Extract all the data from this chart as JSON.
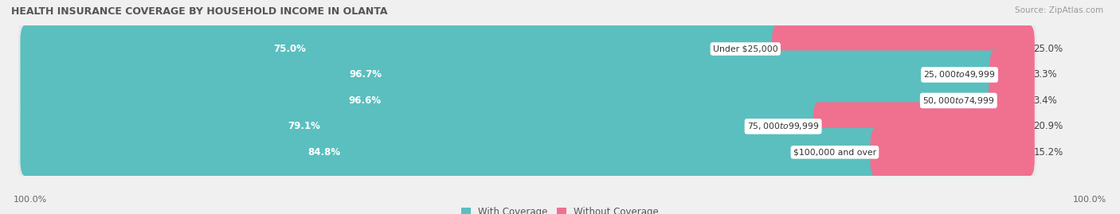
{
  "title": "HEALTH INSURANCE COVERAGE BY HOUSEHOLD INCOME IN OLANTA",
  "source": "Source: ZipAtlas.com",
  "categories": [
    "Under $25,000",
    "$25,000 to $49,999",
    "$50,000 to $74,999",
    "$75,000 to $99,999",
    "$100,000 and over"
  ],
  "with_coverage": [
    75.0,
    96.7,
    96.6,
    79.1,
    84.8
  ],
  "without_coverage": [
    25.0,
    3.3,
    3.4,
    20.9,
    15.2
  ],
  "color_with": "#5bbfbf",
  "color_without": "#f07090",
  "bg_color": "#f0f0f0",
  "bar_bg_color": "#ffffff",
  "row_bg_color": "#e8e8e8",
  "legend_with": "With Coverage",
  "legend_without": "Without Coverage",
  "left_label": "100.0%",
  "right_label": "100.0%"
}
